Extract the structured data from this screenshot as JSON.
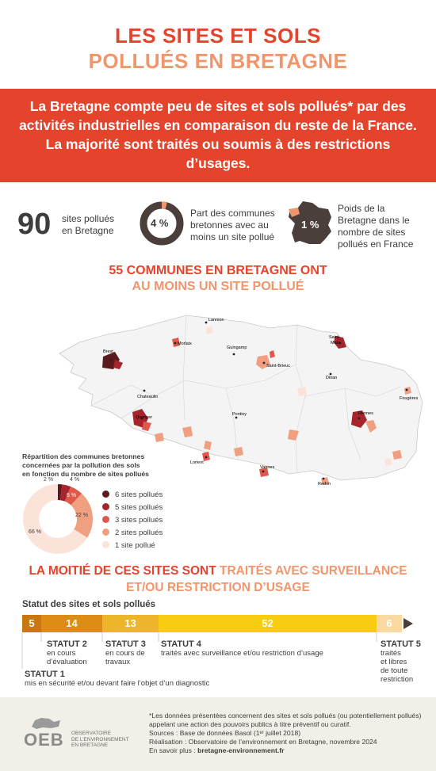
{
  "header": {
    "title_line1": "LES SITES ET SOLS",
    "title_line2": "POLLUÉS EN BRETAGNE"
  },
  "banner": {
    "text": "La Bretagne compte peu de sites et sols pollués* par des activités industrielles en comparaison du reste de la France. La majorité sont traités ou soumis à des restrictions d’usages."
  },
  "stats": {
    "count": "90",
    "count_label_1": "sites pollués",
    "count_label_2": "en Bretagne",
    "communes_pct": "4 %",
    "communes_pct_value": 4,
    "communes_label_1": "Part des communes",
    "communes_label_2": "bretonnes avec au",
    "communes_label_3": "moins un site pollué",
    "france_pct": "1 %",
    "france_label_1": "Poids de la",
    "france_label_2": "Bretagne dans le",
    "france_label_3": "nombre de sites",
    "france_label_4": "pollués en France"
  },
  "map_section": {
    "title_line1": "55 COMMUNES EN BRETAGNE ONT",
    "title_line2": "AU MOINS UN SITE POLLUÉ",
    "cities": {
      "lannion": "Lannion",
      "morlaix": "Morlaix",
      "brest": "Brest",
      "guingamp": "Guingamp",
      "saint_malo_1": "Saint-",
      "saint_malo_2": "Malo",
      "saint_brieuc": "Saint-Brieuc",
      "dinan": "Dinan",
      "chateaulin": "Chateaulin",
      "fougeres": "Fougères",
      "quimper": "Quimper",
      "pontivy": "Pontivy",
      "rennes": "Rennes",
      "lorient": "Lorient",
      "vannes": "Vannes",
      "redon": "Redon"
    }
  },
  "pie": {
    "title": "Répartition des communes bretonnes concernées par le nombre de sites pollués en fonction du nombre de sites pollués",
    "title_l1": "Répartition des communes bretonnes",
    "title_l2": "concernées par la pollution des sols",
    "title_l3": "en fonction du nombre de sites pollués",
    "labels": {
      "p2": "2 %",
      "p4": "4 %",
      "p6": "6 %",
      "p22": "22 %",
      "p66": "66 %"
    },
    "legend": [
      "6 sites pollués",
      "5 sites pollués",
      "3 sites pollués",
      "2 sites pollués",
      "1 site pollué"
    ],
    "colors": [
      "#5c1a1e",
      "#a6242b",
      "#e0584a",
      "#f0a080",
      "#fbe3da"
    ]
  },
  "chart_data": {
    "type": "pie",
    "title": "Répartition des communes bretonnes concernées par la pollution des sols en fonction du nombre de sites pollués",
    "categories": [
      "6 sites pollués",
      "5 sites pollués",
      "3 sites pollués",
      "2 sites pollués",
      "1 site pollué"
    ],
    "values": [
      2,
      4,
      6,
      22,
      66
    ]
  },
  "status_section": {
    "title_part1": "LA MOITIÉ DE CES SITES SONT",
    "title_part2": "TRAITÉS AVEC SURVEILLANCE",
    "title_line2": "ET/OU RESTRICTION D’USAGE",
    "subtitle": "Statut des sites et sols pollués",
    "bars": [
      {
        "value": "5",
        "color": "#c8780f"
      },
      {
        "value": "14",
        "color": "#db8d15"
      },
      {
        "value": "13",
        "color": "#edb52a"
      },
      {
        "value": "52",
        "color": "#f7cc11"
      },
      {
        "value": "6",
        "color": "#fad9a0"
      }
    ],
    "statut1_h": "STATUT 1",
    "statut1_t": "mis en sécurité et/ou devant faire l’objet d’un diagnostic",
    "statut2_h": "STATUT 2",
    "statut2_t1": "en cours",
    "statut2_t2": "d’évaluation",
    "statut3_h": "STATUT 3",
    "statut3_t1": "en cours de",
    "statut3_t2": "travaux",
    "statut4_h": "STATUT 4",
    "statut4_t": "traités avec surveillance et/ou restriction d’usage",
    "statut5_h": "STATUT 5",
    "statut5_t1": "traités",
    "statut5_t2": "et libres",
    "statut5_t3": "de toute",
    "statut5_t4": "restriction"
  },
  "footer": {
    "note_l1": "*Les données présentées concernent des sites et sols pollués (ou potentiellement pollués)",
    "note_l2": "appelant une action des pouvoirs publics à titre préventif ou curatif.",
    "sources": "Sources : Base de données Basol (1ᵉʳ juillet 2018)",
    "realisation": "Réalisation : Observatoire de l’environnement en Bretagne, novembre 2024",
    "more_prefix": "En savoir plus : ",
    "more_link": "bretagne-environnement.fr",
    "logo": "OEB",
    "logo_l1": "OBSERVATOIRE",
    "logo_l2": "DE L’ENVIRONNEMENT",
    "logo_l3": "EN BRETAGNE"
  }
}
